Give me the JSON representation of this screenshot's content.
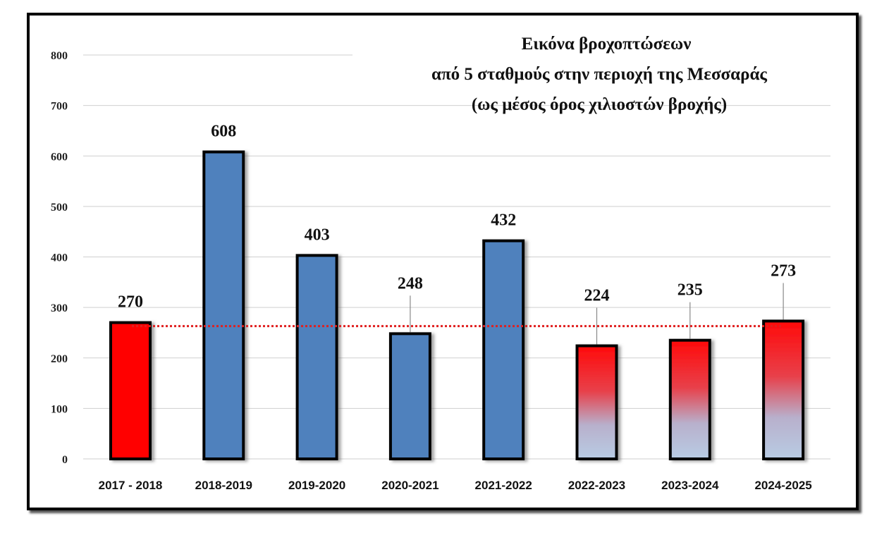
{
  "chart_data": {
    "type": "bar",
    "title": [
      "Εικόνα βροχοπτώσεων",
      "από 5 σταθμούς στην περιοχή της Μεσσαράς",
      "(ως μέσος όρος χιλιοστών βροχής)"
    ],
    "xlabel": "",
    "ylabel": "",
    "ylim": [
      0,
      800
    ],
    "yticks": [
      0,
      100,
      200,
      300,
      400,
      500,
      600,
      700,
      800
    ],
    "categories": [
      "2017 - 2018",
      "2018-2019",
      "2019-2020",
      "2020-2021",
      "2021-2022",
      "2022-2023",
      "2023-2024",
      "2024-2025"
    ],
    "values": [
      270,
      608,
      403,
      248,
      432,
      224,
      235,
      273
    ],
    "bar_styles": [
      "red",
      "blue",
      "blue",
      "blue",
      "blue",
      "red-to-lightblue-gradient",
      "red-to-lightblue-gradient",
      "red-to-lightblue-gradient"
    ],
    "reference_line": {
      "value": 263,
      "style": "dotted",
      "color": "#e02020"
    },
    "grid": true,
    "legend": "none",
    "colors": {
      "red": "#ff0000",
      "blue": "#4f81bd",
      "light_blue": "#b8cce4",
      "grid": "#cfcfcf"
    }
  }
}
